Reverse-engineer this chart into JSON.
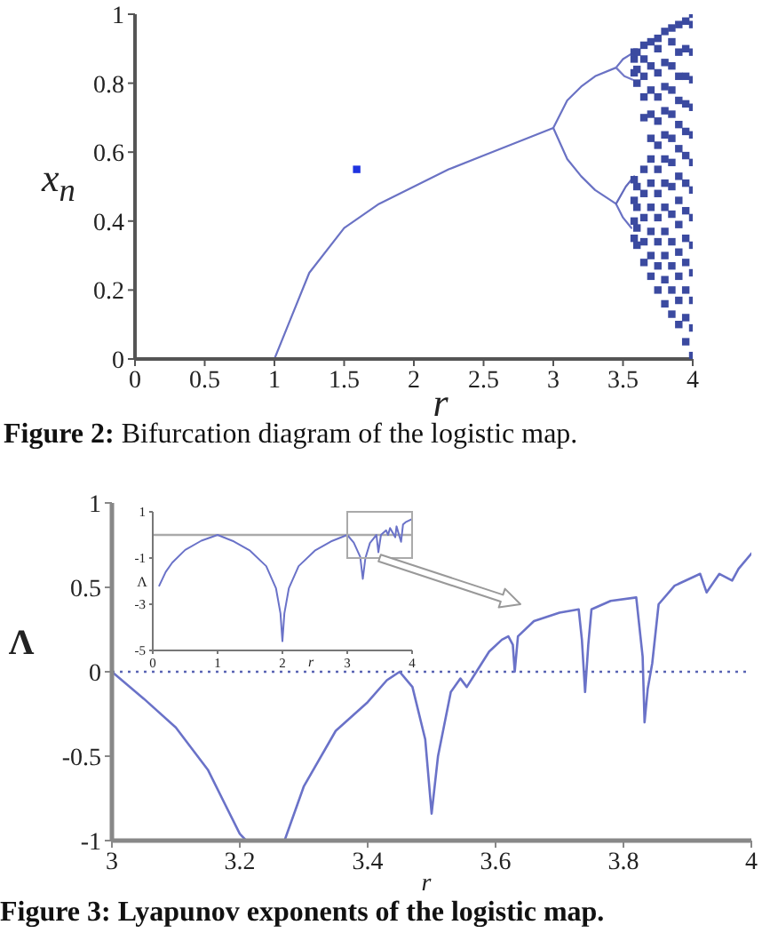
{
  "chart_data": [
    {
      "type": "scatter",
      "xlabel": "r",
      "ylabel": "x$_{n}$",
      "annotations": [
        "Figure 2: Bifurcation diagram of the logistic map."
      ],
      "xlim": [
        0,
        4
      ],
      "ylim": [
        0,
        1
      ],
      "xticks": [
        0,
        0.5,
        1,
        1.5,
        2,
        2.5,
        3,
        3.5,
        4
      ],
      "yticks": [
        0,
        0.2,
        0.4,
        0.6,
        0.8,
        1
      ],
      "series": [
        {
          "type": "line",
          "color": "#6a72c4",
          "x": [
            0,
            0.5,
            1,
            1.1,
            1.25,
            1.5,
            1.75,
            2,
            2.25,
            2.5,
            2.75,
            3,
            3.1,
            3.2,
            3.3,
            3.45,
            3.5,
            3.56
          ],
          "values": [
            0,
            0,
            0,
            0.1,
            0.25,
            0.38,
            0.45,
            0.5,
            0.55,
            0.59,
            0.63,
            0.67,
            0.75,
            0.79,
            0.82,
            0.845,
            0.87,
            0.885
          ]
        },
        {
          "type": "line",
          "color": "#6a72c4",
          "x": [
            3,
            3.1,
            3.2,
            3.3,
            3.45,
            3.5,
            3.56
          ],
          "values": [
            0.67,
            0.58,
            0.53,
            0.49,
            0.45,
            0.41,
            0.38
          ]
        },
        {
          "type": "line",
          "color": "#7379c8",
          "x": [
            3.45,
            3.51,
            3.57
          ],
          "values": [
            0.845,
            0.82,
            0.81
          ]
        },
        {
          "type": "line",
          "color": "#6169bc",
          "x": [
            3.45,
            3.52,
            3.58
          ],
          "values": [
            0.45,
            0.5,
            0.53
          ]
        },
        {
          "marker": "square",
          "color": "#3b4aa0",
          "x": [
            3.58,
            3.58,
            3.58,
            3.58,
            3.58,
            3.58,
            3.58,
            3.6,
            3.6,
            3.6,
            3.6,
            3.6,
            3.6,
            3.6,
            3.65,
            3.65,
            3.65,
            3.65,
            3.65,
            3.65,
            3.65,
            3.65,
            3.65,
            3.65,
            3.7,
            3.7,
            3.7,
            3.7,
            3.7,
            3.7,
            3.7,
            3.7,
            3.7,
            3.7,
            3.7,
            3.75,
            3.75,
            3.75,
            3.75,
            3.75,
            3.75,
            3.75,
            3.75,
            3.75,
            3.75,
            3.75,
            3.75,
            3.8,
            3.8,
            3.8,
            3.8,
            3.8,
            3.8,
            3.8,
            3.8,
            3.8,
            3.8,
            3.8,
            3.8,
            3.85,
            3.85,
            3.85,
            3.85,
            3.85,
            3.85,
            3.85,
            3.85,
            3.85,
            3.85,
            3.85,
            3.85,
            3.85,
            3.9,
            3.9,
            3.9,
            3.9,
            3.9,
            3.9,
            3.9,
            3.9,
            3.9,
            3.9,
            3.9,
            3.9,
            3.9,
            3.95,
            3.95,
            3.95,
            3.95,
            3.95,
            3.95,
            3.95,
            3.95,
            3.95,
            3.95,
            3.95,
            3.95,
            3.95,
            4,
            4,
            4,
            4,
            4,
            4,
            4,
            4,
            4,
            4,
            4,
            4,
            4,
            4
          ],
          "values": [
            0.35,
            0.4,
            0.46,
            0.52,
            0.83,
            0.87,
            0.89,
            0.33,
            0.38,
            0.44,
            0.5,
            0.8,
            0.84,
            0.89,
            0.28,
            0.34,
            0.41,
            0.48,
            0.55,
            0.7,
            0.76,
            0.82,
            0.87,
            0.91,
            0.24,
            0.3,
            0.37,
            0.44,
            0.51,
            0.58,
            0.64,
            0.71,
            0.78,
            0.85,
            0.92,
            0.2,
            0.27,
            0.34,
            0.41,
            0.48,
            0.55,
            0.62,
            0.69,
            0.76,
            0.83,
            0.9,
            0.93,
            0.16,
            0.23,
            0.3,
            0.37,
            0.44,
            0.51,
            0.58,
            0.65,
            0.72,
            0.79,
            0.86,
            0.95,
            0.13,
            0.2,
            0.27,
            0.34,
            0.42,
            0.5,
            0.57,
            0.64,
            0.71,
            0.78,
            0.85,
            0.92,
            0.96,
            0.1,
            0.17,
            0.24,
            0.31,
            0.39,
            0.46,
            0.53,
            0.61,
            0.68,
            0.75,
            0.82,
            0.89,
            0.97,
            0.05,
            0.12,
            0.2,
            0.28,
            0.35,
            0.43,
            0.51,
            0.59,
            0.66,
            0.74,
            0.82,
            0.9,
            0.98,
            0.01,
            0.09,
            0.17,
            0.25,
            0.33,
            0.41,
            0.49,
            0.57,
            0.65,
            0.73,
            0.81,
            0.89,
            0.97,
            1
          ]
        },
        {
          "marker": "square",
          "color": "#1f33e0",
          "x": [
            1.59
          ],
          "values": [
            0.55
          ]
        }
      ]
    },
    {
      "type": "line",
      "xlabel": "r",
      "ylabel": "Λ",
      "annotations": [
        "Figure 3: Lyapunov exponents of the logistic map."
      ],
      "xlim": [
        3,
        4
      ],
      "ylim": [
        -1,
        1
      ],
      "xticks": [
        3,
        3.2,
        3.4,
        3.6,
        3.8,
        4
      ],
      "yticks": [
        -1,
        -0.5,
        0,
        0.5,
        1
      ],
      "color": "#6a72c8",
      "ref_lines": [
        {
          "axis": "y",
          "value": 0,
          "color": "#5a64b4",
          "line_style": "dotted"
        }
      ],
      "x": [
        3,
        3.05,
        3.1,
        3.15,
        3.2,
        3.21,
        3.24,
        3.27,
        3.3,
        3.35,
        3.4,
        3.43,
        3.45,
        3.47,
        3.49,
        3.5,
        3.51,
        3.53,
        3.545,
        3.555,
        3.57,
        3.59,
        3.61,
        3.62,
        3.627,
        3.63,
        3.635,
        3.66,
        3.7,
        3.73,
        3.735,
        3.74,
        3.745,
        3.75,
        3.78,
        3.82,
        3.83,
        3.833,
        3.838,
        3.845,
        3.855,
        3.88,
        3.92,
        3.93,
        3.95,
        3.97,
        3.98,
        4
      ],
      "values": [
        0,
        -0.16,
        -0.33,
        -0.58,
        -0.96,
        -1,
        null,
        -1,
        -0.68,
        -0.35,
        -0.18,
        -0.05,
        0,
        -0.09,
        -0.4,
        -0.84,
        -0.5,
        -0.12,
        -0.04,
        -0.09,
        0,
        0.12,
        0.19,
        0.21,
        0.16,
        0,
        0.21,
        0.3,
        0.35,
        0.37,
        0.19,
        -0.12,
        0.16,
        0.37,
        0.42,
        0.44,
        0.09,
        -0.3,
        -0.1,
        0.05,
        0.4,
        0.51,
        0.58,
        0.47,
        0.58,
        0.54,
        0.61,
        0.7
      ]
    },
    {
      "type": "line",
      "xlabel": "r",
      "ylabel": "Λ",
      "xlim": [
        0,
        4
      ],
      "ylim": [
        -5,
        1
      ],
      "xticks": [
        0,
        1,
        2,
        3,
        4
      ],
      "yticks": [
        -5,
        -3,
        -1,
        1
      ],
      "color": "#6a72c8",
      "ref_lines": [
        {
          "axis": "y",
          "value": 0,
          "color": "#aaaaaa"
        }
      ],
      "x": [
        0.1,
        0.2,
        0.3,
        0.5,
        0.75,
        1,
        1.25,
        1.5,
        1.75,
        1.9,
        1.97,
        2,
        2.03,
        2.1,
        2.25,
        2.5,
        2.75,
        3,
        3.1,
        3.2,
        3.24,
        3.28,
        3.35,
        3.45,
        3.48,
        3.52,
        3.6,
        3.63,
        3.66,
        3.74,
        3.76,
        3.83,
        3.86,
        3.9,
        4
      ],
      "values": [
        -2.2,
        -1.6,
        -1.2,
        -0.65,
        -0.25,
        0,
        -0.28,
        -0.68,
        -1.35,
        -2.3,
        -3.4,
        -4.6,
        -3.4,
        -2.3,
        -1.35,
        -0.68,
        -0.28,
        0,
        -0.33,
        -0.95,
        -1.9,
        -1,
        -0.35,
        0,
        -0.75,
        0,
        0.2,
        0,
        0.3,
        -0.1,
        0.37,
        -0.3,
        0.45,
        0.55,
        0.69
      ]
    }
  ]
}
